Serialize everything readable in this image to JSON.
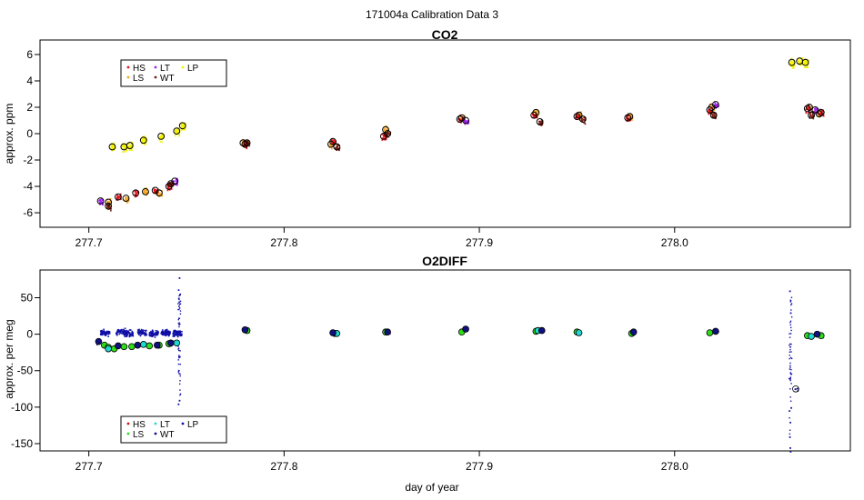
{
  "figure": {
    "suptitle": "171004a   Calibration Data 3"
  },
  "colors": {
    "HS": "#e4141c",
    "LS": "#f5a623",
    "LT": "#a020f0",
    "WT": "#7a1c10",
    "LP": "#f2f200",
    "O2_HS": "#e01010",
    "O2_LS": "#2edc1a",
    "O2_LT": "#20d8d0",
    "O2_WT": "#101080",
    "O2_LP": "#1010a8"
  },
  "chart_data": [
    {
      "type": "scatter",
      "title": "CO2",
      "xlabel": "",
      "ylabel": "approx. ppm",
      "xlim": [
        277.675,
        278.09
      ],
      "ylim": [
        -7.1,
        7.1
      ],
      "xticks": [
        "277.7",
        "277.8",
        "277.9",
        "278.0"
      ],
      "xtick_values": [
        277.7,
        277.8,
        277.9,
        278.0
      ],
      "yticks": [
        "-6",
        "-4",
        "-2",
        "0",
        "2",
        "4",
        "6"
      ],
      "ytick_values": [
        -6,
        -4,
        -2,
        0,
        2,
        4,
        6
      ],
      "legend": {
        "position": "top-left",
        "entries": [
          "HS",
          "LS",
          "LT",
          "WT",
          "LP"
        ]
      },
      "series": [
        {
          "name": "HS",
          "means": [
            [
              277.715,
              -4.8
            ],
            [
              277.724,
              -4.5
            ],
            [
              277.734,
              -4.3
            ],
            [
              277.741,
              -4.0
            ],
            [
              277.78,
              -0.8
            ],
            [
              277.825,
              -0.6
            ],
            [
              277.851,
              -0.2
            ],
            [
              277.89,
              1.1
            ],
            [
              277.928,
              1.4
            ],
            [
              277.95,
              1.3
            ],
            [
              277.976,
              1.2
            ],
            [
              278.018,
              1.8
            ],
            [
              278.068,
              1.9
            ],
            [
              278.075,
              1.6
            ]
          ]
        },
        {
          "name": "LS",
          "means": [
            [
              277.71,
              -5.2
            ],
            [
              277.719,
              -4.9
            ],
            [
              277.729,
              -4.4
            ],
            [
              277.736,
              -4.5
            ],
            [
              277.779,
              -0.7
            ],
            [
              277.824,
              -0.8
            ],
            [
              277.852,
              0.3
            ],
            [
              277.891,
              1.2
            ],
            [
              277.929,
              1.6
            ],
            [
              277.951,
              1.4
            ],
            [
              277.977,
              1.3
            ],
            [
              278.019,
              2.0
            ],
            [
              278.069,
              2.0
            ],
            [
              278.074,
              1.5
            ]
          ]
        },
        {
          "name": "LT",
          "means": [
            [
              277.706,
              -5.1
            ],
            [
              277.744,
              -3.6
            ],
            [
              277.893,
              1.0
            ],
            [
              278.021,
              2.2
            ],
            [
              278.072,
              1.8
            ]
          ]
        },
        {
          "name": "WT",
          "means": [
            [
              277.71,
              -5.5
            ],
            [
              277.742,
              -3.8
            ],
            [
              277.781,
              -0.7
            ],
            [
              277.827,
              -1.0
            ],
            [
              277.853,
              0.0
            ],
            [
              277.931,
              0.9
            ],
            [
              277.953,
              1.1
            ],
            [
              278.02,
              1.4
            ],
            [
              278.07,
              1.4
            ]
          ]
        },
        {
          "name": "LP",
          "means": [
            [
              277.712,
              -1.0
            ],
            [
              277.718,
              -1.0
            ],
            [
              277.721,
              -0.9
            ],
            [
              277.728,
              -0.5
            ],
            [
              277.737,
              -0.2
            ],
            [
              277.745,
              0.2
            ],
            [
              277.748,
              0.6
            ],
            [
              278.06,
              5.4
            ],
            [
              278.064,
              5.5
            ],
            [
              278.067,
              5.4
            ]
          ]
        }
      ]
    },
    {
      "type": "scatter",
      "title": "O2DIFF",
      "xlabel": "day of year",
      "ylabel": "approx. per meg",
      "xlim": [
        277.675,
        278.09
      ],
      "ylim": [
        -160,
        88
      ],
      "xticks": [
        "277.7",
        "277.8",
        "277.9",
        "278.0"
      ],
      "xtick_values": [
        277.7,
        277.8,
        277.9,
        278.0
      ],
      "yticks": [
        "-150",
        "-100",
        "-50",
        "0",
        "50"
      ],
      "ytick_values": [
        -150,
        -100,
        -50,
        0,
        50
      ],
      "legend": {
        "position": "bottom-left",
        "entries": [
          "HS",
          "LS",
          "LT",
          "WT",
          "LP"
        ]
      },
      "series": [
        {
          "name": "LS",
          "means": [
            [
              277.708,
              -15
            ],
            [
              277.71,
              -18
            ],
            [
              277.713,
              -20
            ],
            [
              277.718,
              -17
            ],
            [
              277.722,
              -17
            ],
            [
              277.731,
              -16
            ],
            [
              277.736,
              -15
            ],
            [
              277.741,
              -13
            ],
            [
              277.781,
              5
            ],
            [
              277.826,
              1
            ],
            [
              277.852,
              3
            ],
            [
              277.891,
              3
            ],
            [
              277.929,
              4
            ],
            [
              277.95,
              3
            ],
            [
              277.978,
              1
            ],
            [
              278.018,
              2
            ],
            [
              278.068,
              -2
            ],
            [
              278.075,
              -2
            ]
          ]
        },
        {
          "name": "LT",
          "means": [
            [
              277.71,
              -20
            ],
            [
              277.728,
              -14
            ],
            [
              277.745,
              -12
            ],
            [
              277.827,
              1
            ],
            [
              277.93,
              5
            ],
            [
              277.951,
              2
            ],
            [
              278.07,
              -3
            ]
          ]
        },
        {
          "name": "WT",
          "means": [
            [
              277.705,
              -10
            ],
            [
              277.715,
              -16
            ],
            [
              277.725,
              -15
            ],
            [
              277.735,
              -15
            ],
            [
              277.742,
              -12
            ],
            [
              277.78,
              6
            ],
            [
              277.825,
              2
            ],
            [
              277.853,
              3
            ],
            [
              277.893,
              7
            ],
            [
              277.932,
              5
            ],
            [
              277.979,
              3
            ],
            [
              278.021,
              4
            ],
            [
              278.062,
              -75
            ],
            [
              278.073,
              0
            ]
          ]
        }
      ],
      "lp_clusters": [
        [
          277.708,
          3
        ],
        [
          277.716,
          4
        ],
        [
          277.72,
          2
        ],
        [
          277.727,
          3
        ],
        [
          277.733,
          2
        ],
        [
          277.739,
          3
        ],
        [
          277.745,
          2
        ]
      ],
      "spikes": [
        {
          "x": 277.746,
          "values": [
            78,
            55,
            50,
            45,
            -90,
            -95,
            -30
          ]
        },
        {
          "x": 278.059,
          "values": [
            60,
            30,
            -60,
            -100,
            -120,
            -140,
            -155,
            -160
          ]
        }
      ]
    }
  ]
}
